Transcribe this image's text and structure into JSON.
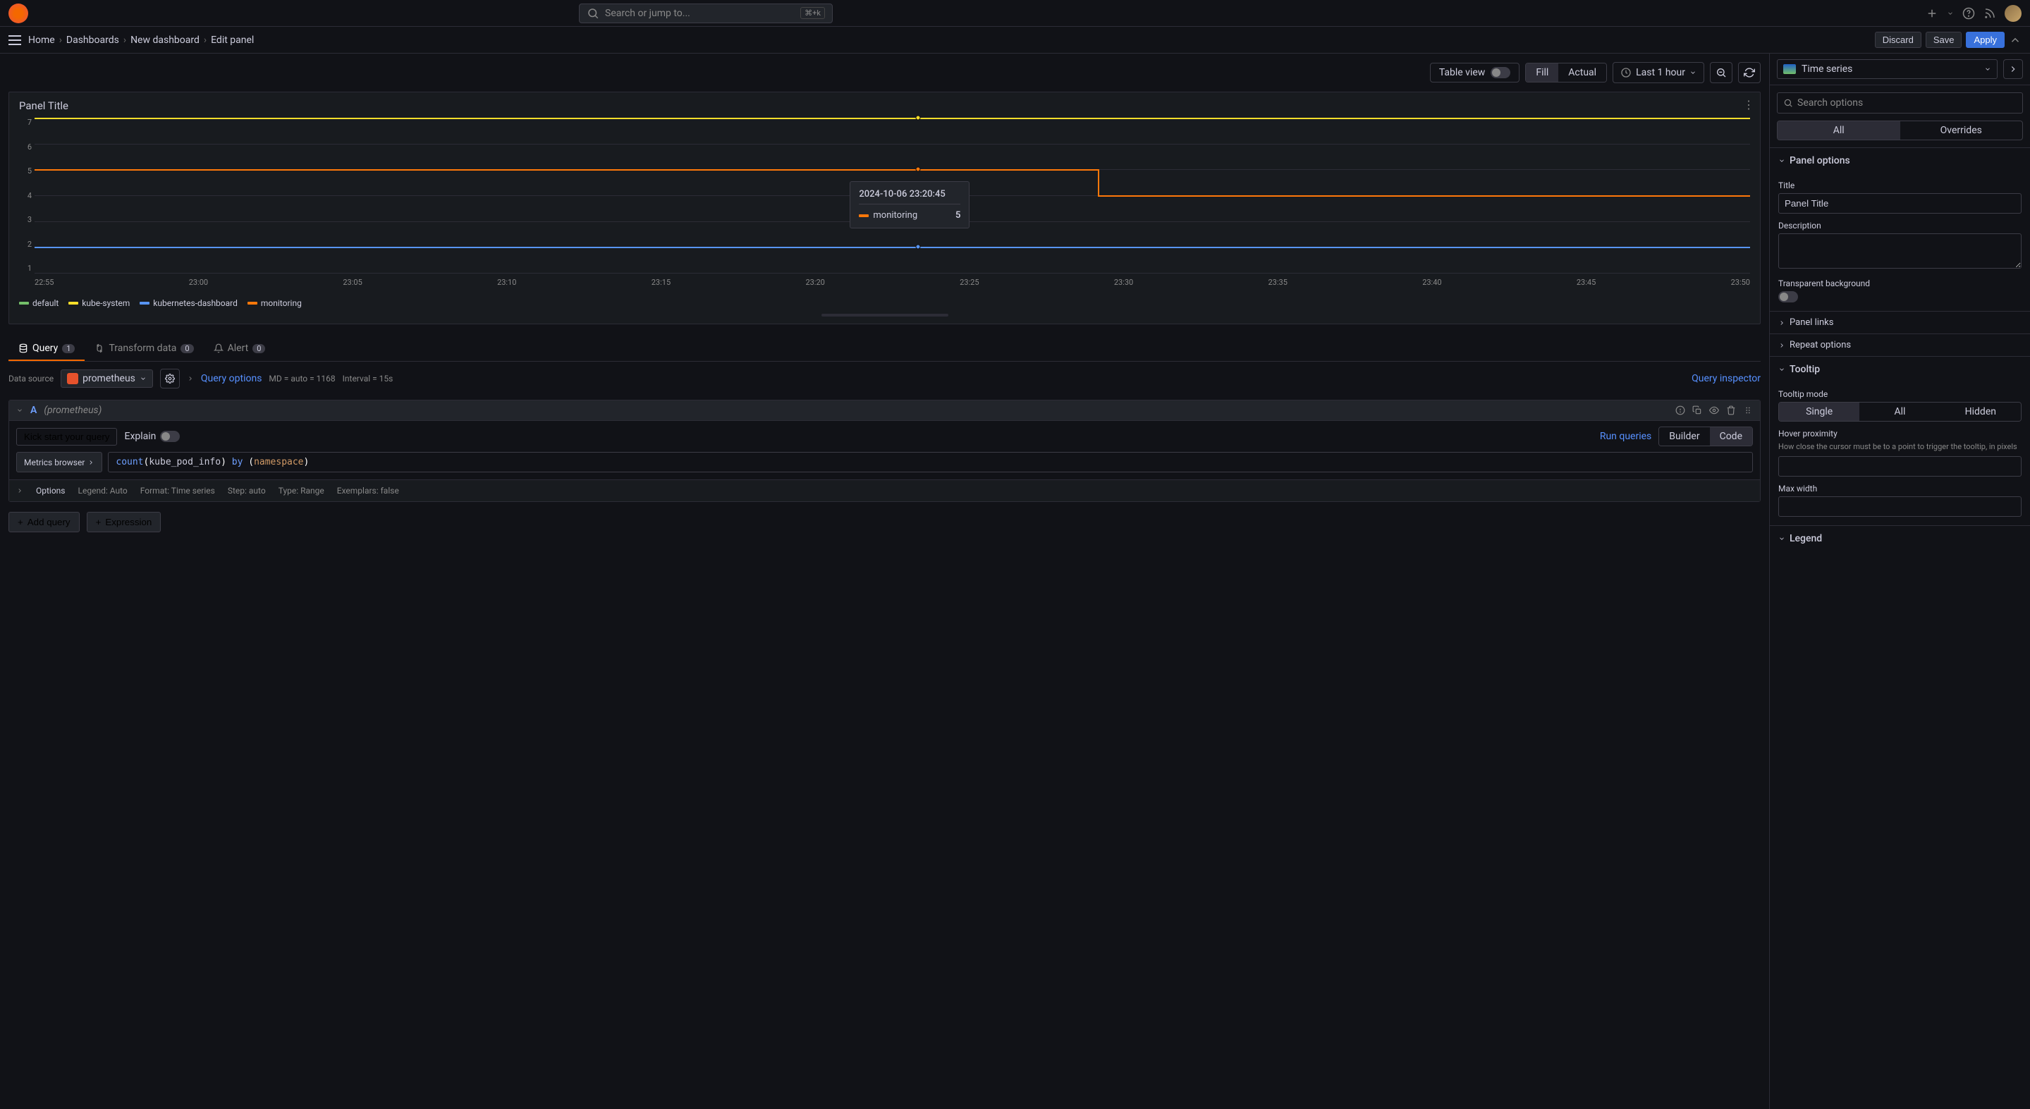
{
  "topbar": {
    "search_placeholder": "Search or jump to...",
    "search_kbd": "⌘+k"
  },
  "breadcrumb": {
    "items": [
      "Home",
      "Dashboards",
      "New dashboard",
      "Edit panel"
    ]
  },
  "header_buttons": {
    "discard": "Discard",
    "save": "Save",
    "apply": "Apply"
  },
  "toolbar": {
    "table_view": "Table view",
    "fill": "Fill",
    "actual": "Actual",
    "time_range": "Last 1 hour"
  },
  "panel": {
    "title": "Panel Title"
  },
  "chart": {
    "type": "line",
    "title_fontsize": 15,
    "background_color": "#181b1f",
    "grid_color": "#2c2c36",
    "text_color": "#888888",
    "ylim": [
      1,
      7
    ],
    "yticks": [
      7,
      6,
      5,
      4,
      3,
      2,
      1
    ],
    "xticks": [
      "22:55",
      "23:00",
      "23:05",
      "23:10",
      "23:15",
      "23:20",
      "23:25",
      "23:30",
      "23:35",
      "23:40",
      "23:45",
      "23:50"
    ],
    "series": [
      {
        "name": "default",
        "color": "#73bf69",
        "y": 2
      },
      {
        "name": "kube-system",
        "color": "#fade2a",
        "y": 7
      },
      {
        "name": "kubernetes-dashboard",
        "color": "#5794f2",
        "y": 2
      },
      {
        "name": "monitoring",
        "color": "#ff780a",
        "y": 5,
        "y2": 4,
        "step_at": 0.62
      }
    ],
    "highlight_x": 0.515,
    "line_width": 2,
    "label_fontsize": 11
  },
  "tooltip_popup": {
    "timestamp": "2024-10-06 23:20:45",
    "series_name": "monitoring",
    "series_color": "#ff780a",
    "value": "5"
  },
  "tabs": {
    "query": "Query",
    "query_count": "1",
    "transform": "Transform data",
    "transform_count": "0",
    "alert": "Alert",
    "alert_count": "0"
  },
  "datasource": {
    "label": "Data source",
    "name": "prometheus",
    "query_options": "Query options",
    "md": "MD = auto = 1168",
    "interval": "Interval = 15s",
    "inspector": "Query inspector"
  },
  "query": {
    "letter": "A",
    "src": "(prometheus)",
    "kick": "Kick start your query",
    "explain": "Explain",
    "run": "Run queries",
    "builder": "Builder",
    "code": "Code",
    "metrics_browser": "Metrics browser",
    "expr_fn": "count",
    "expr_arg1": "kube_pod_info",
    "expr_kw": "by",
    "expr_arg2": "namespace",
    "options_label": "Options",
    "legend": "Legend: Auto",
    "format": "Format: Time series",
    "step": "Step: auto",
    "type": "Type: Range",
    "exemplars": "Exemplars: false"
  },
  "add": {
    "query": "Add query",
    "expression": "Expression"
  },
  "viz": {
    "name": "Time series"
  },
  "right": {
    "search_placeholder": "Search options",
    "all": "All",
    "overrides": "Overrides",
    "panel_options": "Panel options",
    "title_label": "Title",
    "title_value": "Panel Title",
    "description_label": "Description",
    "transparent_label": "Transparent background",
    "panel_links": "Panel links",
    "repeat_options": "Repeat options",
    "tooltip_section": "Tooltip",
    "tooltip_mode": "Tooltip mode",
    "single": "Single",
    "all_mode": "All",
    "hidden": "Hidden",
    "hover_label": "Hover proximity",
    "hover_help": "How close the cursor must be to a point to trigger the tooltip, in pixels",
    "max_width": "Max width",
    "legend_section": "Legend"
  }
}
